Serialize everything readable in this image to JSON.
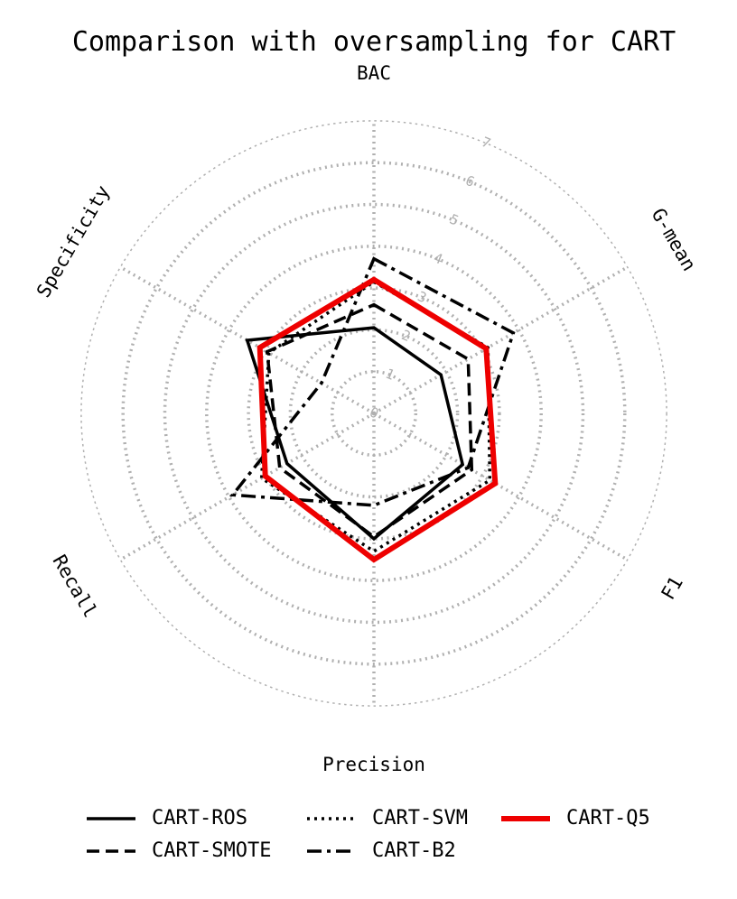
{
  "chart_data": {
    "type": "radar",
    "title": "Comparison with oversampling for CART",
    "axes": [
      "BAC",
      "G-mean",
      "F1",
      "Precision",
      "Recall",
      "Specificity"
    ],
    "radial_ticks": [
      "0",
      "1",
      "2",
      "3",
      "4",
      "5",
      "6",
      "7"
    ],
    "rlim": [
      0,
      7
    ],
    "grid": true,
    "legend_position": "bottom",
    "series": [
      {
        "name": "CART-ROS",
        "values": [
          2.05,
          1.85,
          2.45,
          3.0,
          2.4,
          3.5
        ],
        "color": "#000000",
        "style": "solid"
      },
      {
        "name": "CART-SMOTE",
        "values": [
          2.6,
          2.6,
          2.7,
          2.95,
          2.6,
          2.95
        ],
        "color": "#000000",
        "style": "dashed"
      },
      {
        "name": "CART-SVM",
        "values": [
          3.15,
          3.15,
          3.2,
          3.3,
          3.1,
          2.9
        ],
        "color": "#000000",
        "style": "dotted"
      },
      {
        "name": "CART-B2",
        "values": [
          3.7,
          3.85,
          2.6,
          2.2,
          3.9,
          1.45
        ],
        "color": "#000000",
        "style": "dashdot"
      },
      {
        "name": "CART-Q5",
        "values": [
          3.2,
          3.1,
          3.35,
          3.5,
          3.0,
          3.15
        ],
        "color": "#ee0000",
        "style": "solid"
      }
    ]
  }
}
